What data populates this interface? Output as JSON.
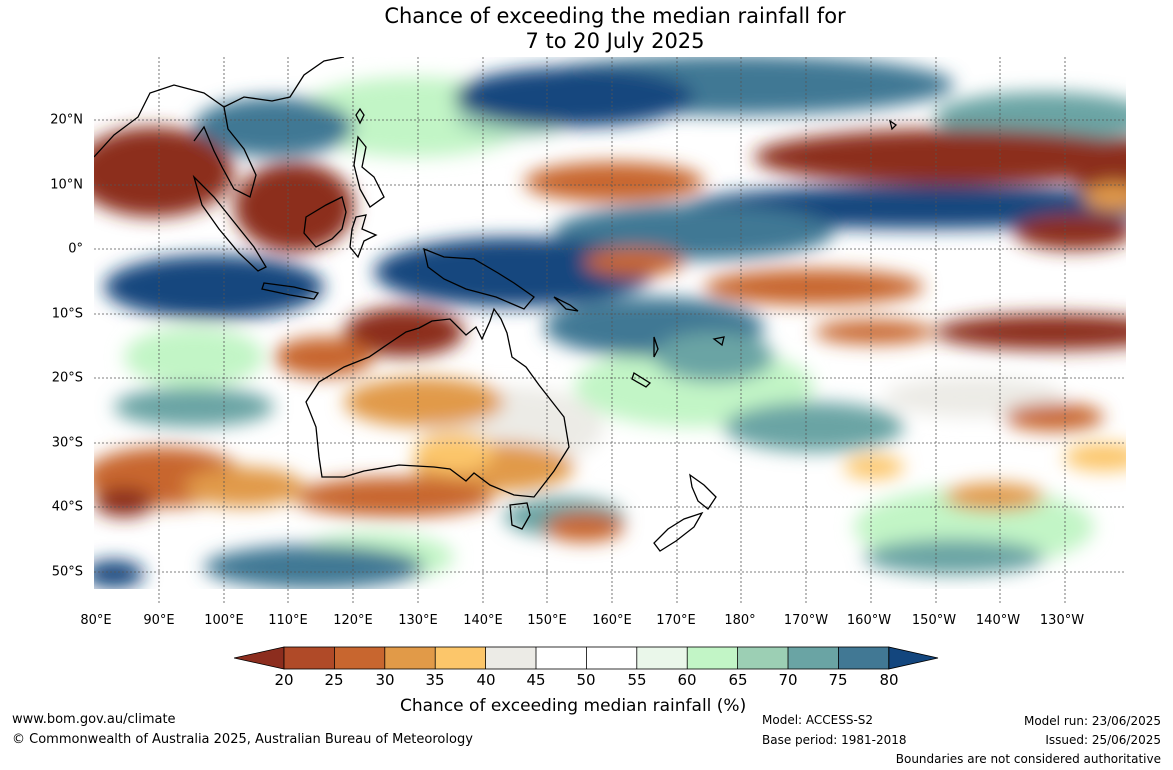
{
  "title": {
    "line1": "Chance of exceeding the median rainfall for",
    "line2": "7 to 20 July 2025"
  },
  "map": {
    "lat_labels": [
      "20°N",
      "10°N",
      "0°",
      "10°S",
      "20°S",
      "30°S",
      "40°S",
      "50°S"
    ],
    "lon_labels": [
      "80°E",
      "90°E",
      "100°E",
      "110°E",
      "120°E",
      "130°E",
      "140°E",
      "150°E",
      "160°E",
      "170°E",
      "180°",
      "170°W",
      "160°W",
      "150°W",
      "140°W",
      "130°W"
    ]
  },
  "legend": {
    "ticks": [
      "20",
      "25",
      "30",
      "35",
      "40",
      "45",
      "50",
      "55",
      "60",
      "65",
      "70",
      "75",
      "80"
    ],
    "colors": [
      "#8c2d1e",
      "#b04a28",
      "#c8662f",
      "#e19a48",
      "#fcc66a",
      "#ecebe6",
      "#ffffff",
      "#ffffff",
      "#eaf7ea",
      "#c2f5c6",
      "#9ccfb4",
      "#6aa4a4",
      "#417894",
      "#13467e"
    ],
    "label": "Chance of exceeding median rainfall (%)"
  },
  "footer": {
    "website": "www.bom.gov.au/climate",
    "copyright": "© Commonwealth of Australia 2025, Australian Bureau of Meteorology",
    "model": "Model: ACCESS-S2",
    "base_period": "Base period: 1981-2018",
    "model_run": "Model run: 23/06/2025",
    "issued": "Issued: 25/06/2025",
    "disclaimer": "Boundaries are not considered authoritative"
  }
}
